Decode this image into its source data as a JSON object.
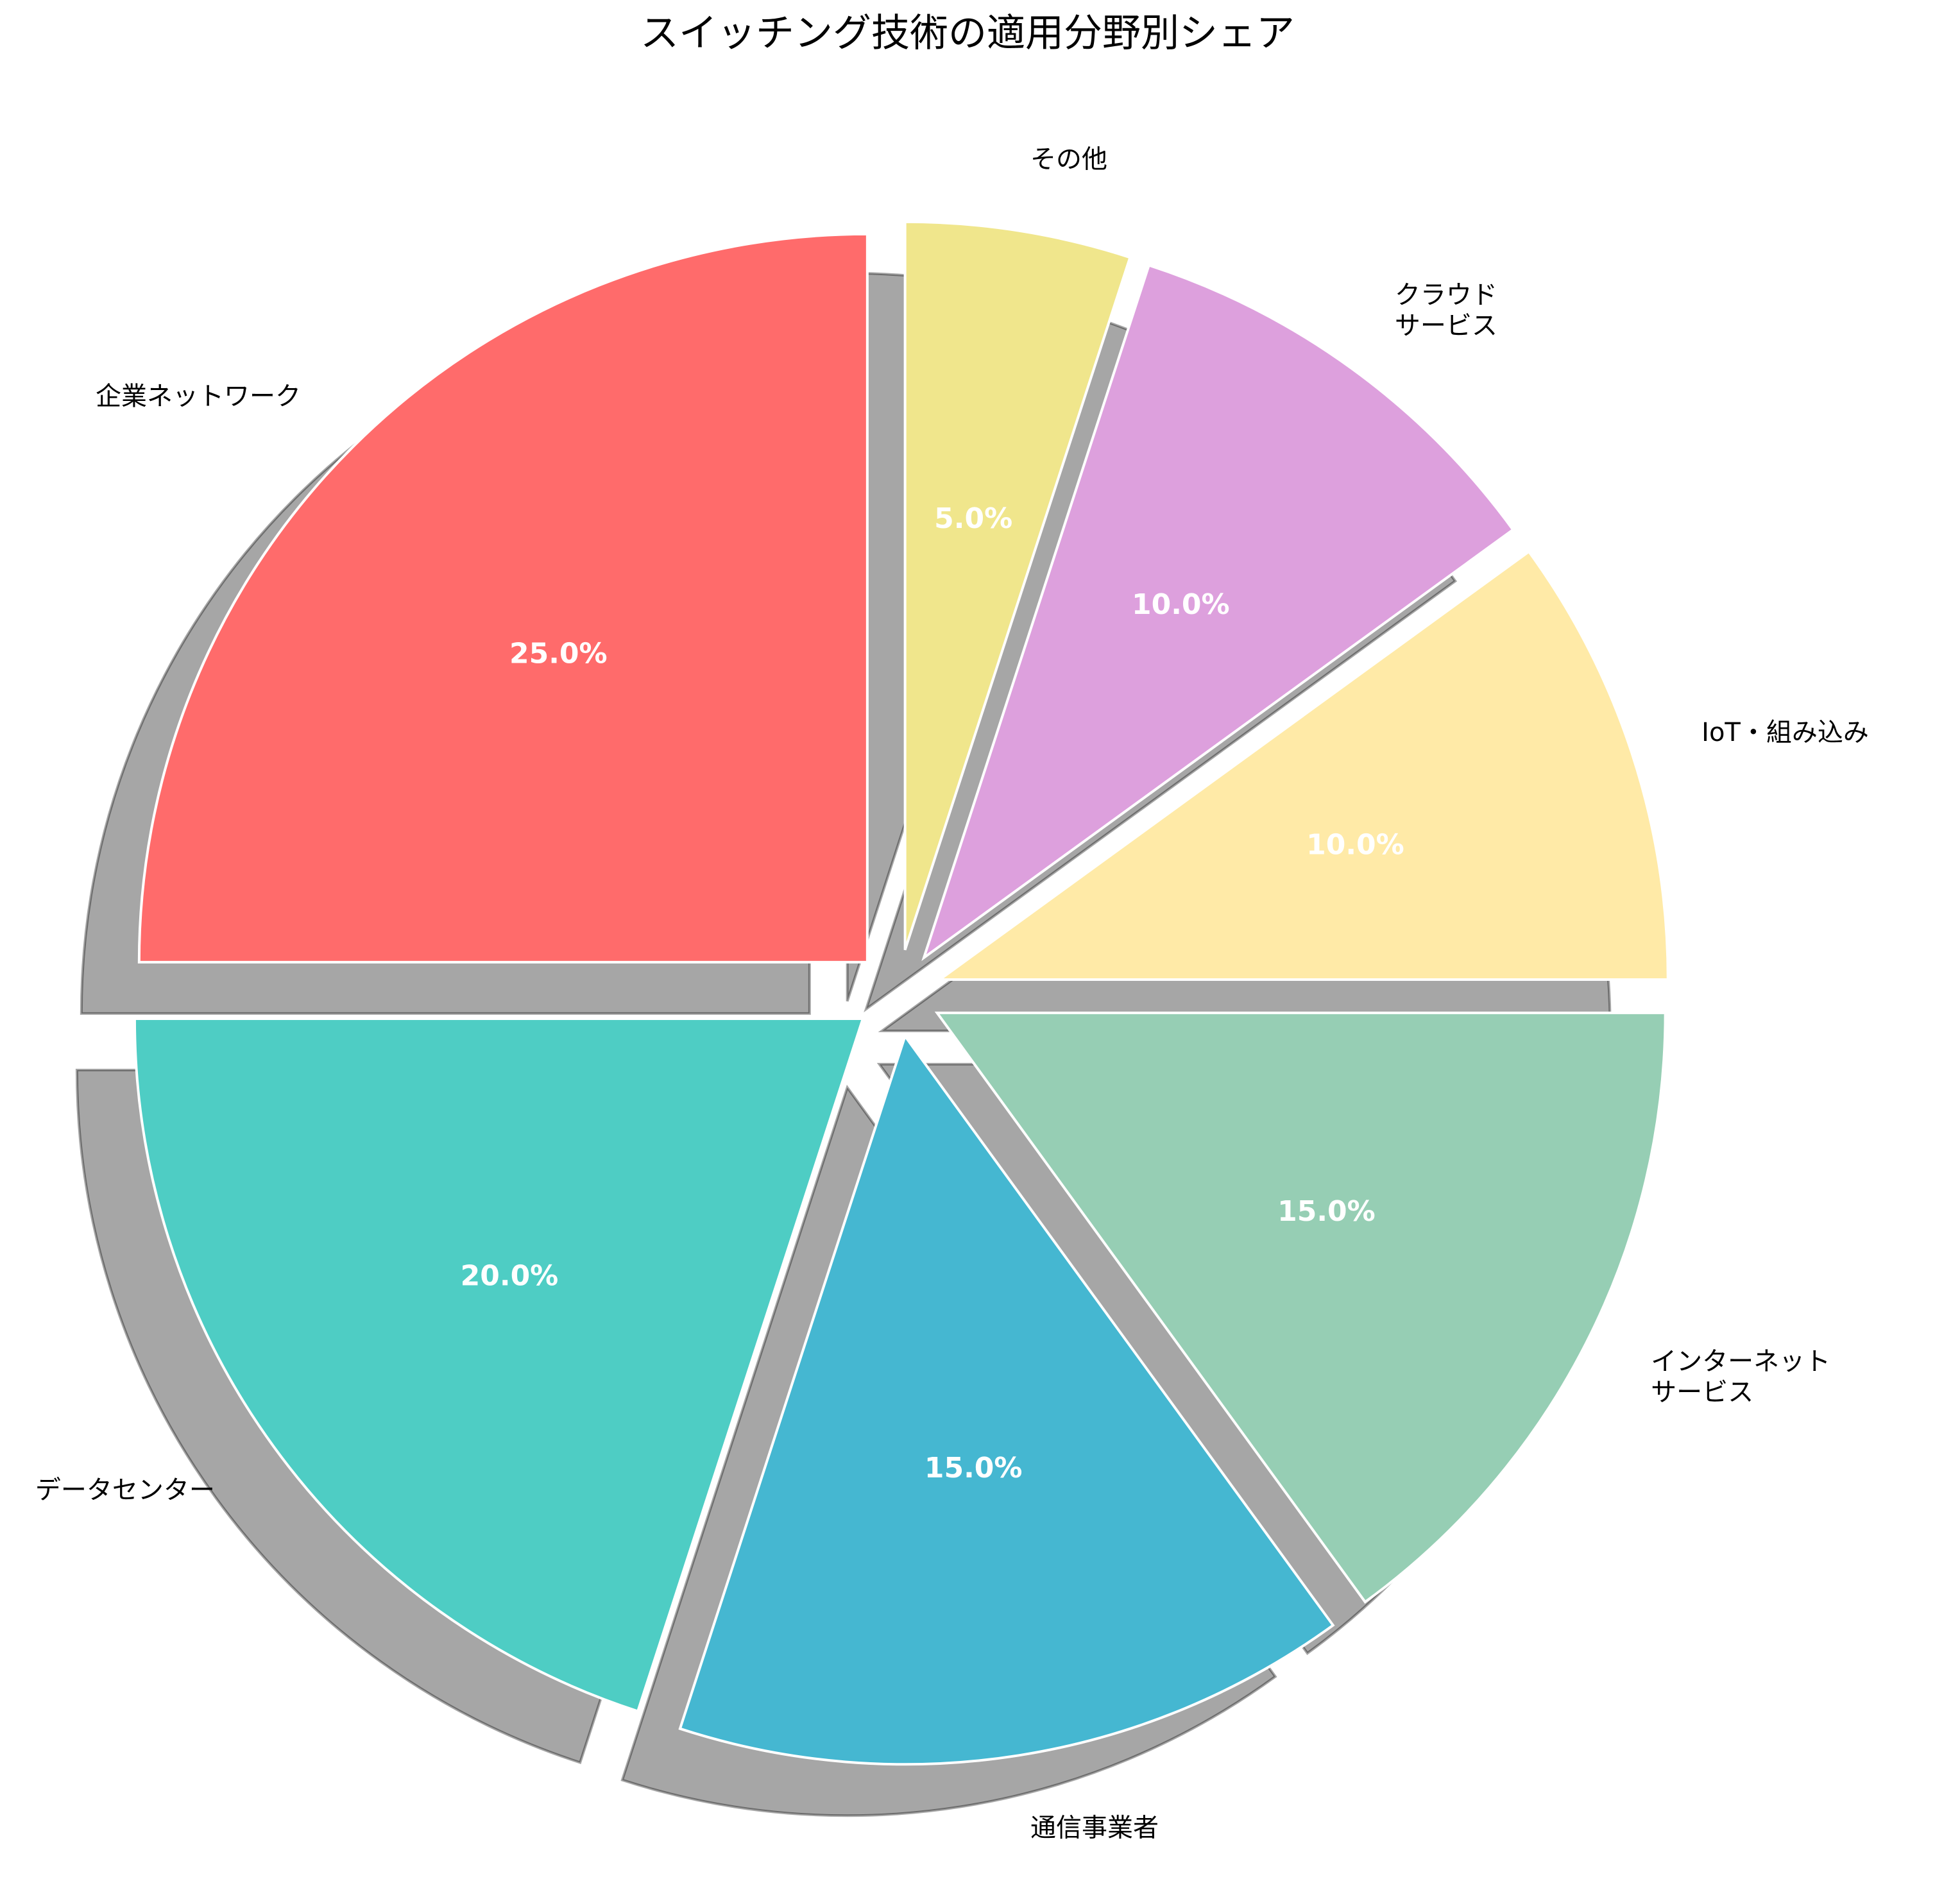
{
  "chart_data": {
    "type": "pie",
    "title": "スイッチング技術の適用分野別シェア",
    "start_angle_deg": 90,
    "direction": "counterclockwise",
    "shadow": true,
    "exploded": true,
    "slices": [
      {
        "label": "企業ネットワーク",
        "value": 25.0,
        "pct_label": "25.0%",
        "color": "#FF6B6B"
      },
      {
        "label": "データセンター",
        "value": 20.0,
        "pct_label": "20.0%",
        "color": "#4ECDC4"
      },
      {
        "label": "通信事業者",
        "value": 15.0,
        "pct_label": "15.0%",
        "color": "#45B7D1"
      },
      {
        "label": "インターネット\nサービス",
        "value": 15.0,
        "pct_label": "15.0%",
        "color": "#96CEB4"
      },
      {
        "label": "IoT・組み込み",
        "value": 10.0,
        "pct_label": "10.0%",
        "color": "#FFEAA7"
      },
      {
        "label": "クラウド\nサービス",
        "value": 10.0,
        "pct_label": "10.0%",
        "color": "#DDA0DD"
      },
      {
        "label": "その他",
        "value": 5.0,
        "pct_label": "5.0%",
        "color": "#F0E68C"
      }
    ]
  }
}
